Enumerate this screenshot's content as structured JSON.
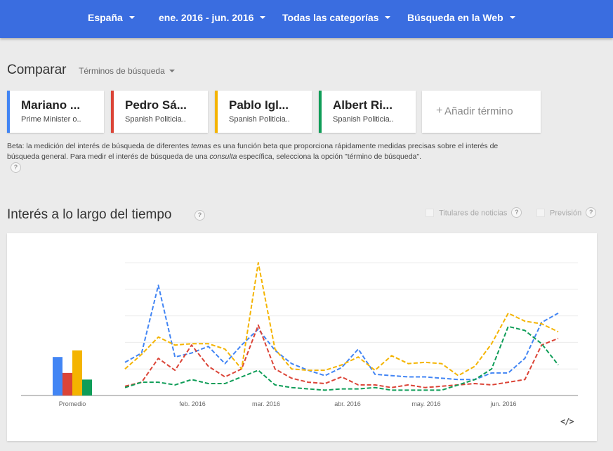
{
  "filters": {
    "region": "España",
    "date_range": "ene. 2016 - jun. 2016",
    "category": "Todas las categorías",
    "search_type": "Búsqueda en la Web"
  },
  "compare": {
    "title": "Comparar",
    "type_label": "Términos de búsqueda"
  },
  "terms": [
    {
      "name": "Mariano ...",
      "subtitle": "Prime Minister o..",
      "color": "#4285f4"
    },
    {
      "name": "Pedro Sá...",
      "subtitle": "Spanish Politicia..",
      "color": "#db4437"
    },
    {
      "name": "Pablo Igl...",
      "subtitle": "Spanish Politicia..",
      "color": "#f4b400"
    },
    {
      "name": "Albert Ri...",
      "subtitle": "Spanish Politicia..",
      "color": "#0f9d58"
    }
  ],
  "add_term": {
    "plus": "+",
    "label": "Añadir término"
  },
  "beta_note": {
    "part1": "Beta: la medición del interés de búsqueda de diferentes ",
    "em1": "temas",
    "part2": " es una función beta que proporciona rápidamente medidas precisas sobre el interés de búsqueda general. Para medir el interés de búsqueda de una ",
    "em2": "consulta",
    "part3": " específica, selecciona la opción \"término de búsqueda\"."
  },
  "help_glyph": "?",
  "interest": {
    "title": "Interés a lo largo del tiempo",
    "option_news": "Titulares de noticias",
    "option_forecast": "Previsión"
  },
  "embed_icon": "</>",
  "chart_data": {
    "type": "line",
    "x_ticks": [
      "feb. 2016",
      "mar. 2016",
      "abr. 2016",
      "may. 2016",
      "jun. 2016"
    ],
    "ylim": [
      0,
      100
    ],
    "grid": true,
    "average_label": "Promedio",
    "averages": [
      {
        "name": "Mariano ...",
        "value": 29
      },
      {
        "name": "Pedro Sá...",
        "value": 17
      },
      {
        "name": "Pablo Igl...",
        "value": 34
      },
      {
        "name": "Albert Ri...",
        "value": 12
      }
    ],
    "series": [
      {
        "name": "Mariano ...",
        "color": "#4285f4",
        "values": [
          25,
          32,
          83,
          29,
          32,
          37,
          24,
          38,
          50,
          34,
          24,
          19,
          15,
          21,
          35,
          16,
          15,
          14,
          14,
          13,
          12,
          12,
          17,
          17,
          28,
          55,
          62
        ]
      },
      {
        "name": "Pedro Sá...",
        "color": "#db4437",
        "values": [
          7,
          10,
          28,
          19,
          38,
          22,
          14,
          20,
          53,
          20,
          13,
          10,
          9,
          14,
          8,
          8,
          6,
          8,
          6,
          7,
          8,
          9,
          8,
          10,
          12,
          38,
          43
        ]
      },
      {
        "name": "Pablo Igl...",
        "color": "#f4b400",
        "values": [
          20,
          31,
          44,
          38,
          39,
          39,
          35,
          20,
          100,
          35,
          20,
          19,
          19,
          23,
          29,
          19,
          30,
          24,
          25,
          24,
          15,
          22,
          39,
          62,
          56,
          54,
          48
        ]
      },
      {
        "name": "Albert Ri...",
        "color": "#0f9d58",
        "values": [
          6,
          10,
          10,
          8,
          12,
          9,
          9,
          14,
          19,
          8,
          6,
          5,
          4,
          5,
          5,
          6,
          4,
          4,
          4,
          4,
          8,
          12,
          20,
          52,
          49,
          39,
          23
        ]
      }
    ]
  }
}
